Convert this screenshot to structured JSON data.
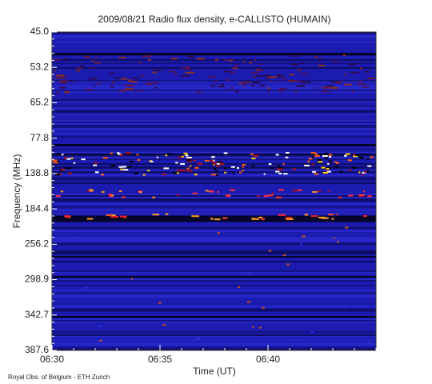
{
  "chart_data": {
    "type": "spectrogram",
    "title": "2009/08/21  Radio flux density, e-CALLISTO (HUMAIN)",
    "x_label": "Time (UT)",
    "y_label": "Frequency (MHz)",
    "footer": "Royal Obs. of Belgium - ETH Zurich",
    "xlim": [
      "06:30",
      "06:45"
    ],
    "xticks": [
      "06:30",
      "06:35",
      "06:40"
    ],
    "yticks": [
      "45.0",
      "53.2",
      "65.2",
      "77.8",
      "138.8",
      "184.4",
      "256.2",
      "298.9",
      "342.7",
      "387.6"
    ]
  }
}
